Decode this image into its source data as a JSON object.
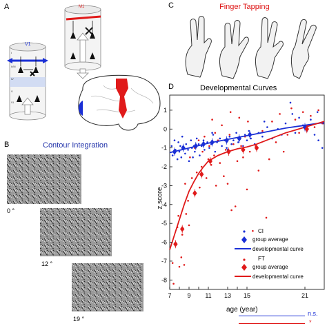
{
  "panels": {
    "A": {
      "letter": "A",
      "cyl_v1_label": "V1",
      "cyl_m1_label": "M1",
      "layers": [
        "I",
        "II/III",
        "IV",
        "V",
        "VI"
      ]
    },
    "B": {
      "letter": "B",
      "title": "Contour Integration",
      "angles": [
        "0 °",
        "12 °",
        "19 °"
      ]
    },
    "C": {
      "letter": "C",
      "title": "Finger Tapping"
    },
    "D": {
      "letter": "D",
      "title": "Developmental Curves"
    }
  },
  "colors": {
    "blue": "#1a2fd6",
    "red": "#e01a1a",
    "title_blue": "#2233aa",
    "title_red": "#dd1111"
  },
  "significance": {
    "blue_label": "n.s.",
    "red_label": "*"
  },
  "chart_data": {
    "type": "scatter",
    "title": "Developmental Curves",
    "xlabel": "age (year)",
    "ylabel": "z score",
    "xlim": [
      7,
      23
    ],
    "ylim": [
      -8.5,
      1.8
    ],
    "xticks": [
      7,
      8,
      9,
      10,
      11,
      13,
      14,
      15,
      21
    ],
    "xtick_labels": [
      "7",
      "9",
      "11",
      "13",
      "15",
      "21"
    ],
    "xtick_label_values": [
      7,
      9,
      11,
      13,
      15,
      21
    ],
    "yticks": [
      1,
      0,
      -1,
      -2,
      -3,
      -4,
      -5,
      -6,
      -7,
      -8
    ],
    "grid": false,
    "legend": {
      "placement": "bottom-right",
      "entries": [
        "CI",
        "group average",
        "developmental curve",
        "FT",
        "group average",
        "developmental curve"
      ]
    },
    "series": [
      {
        "name": "CI",
        "kind": "points",
        "color": "#1a2fd6",
        "points": [
          [
            7.2,
            -0.9
          ],
          [
            7.3,
            -1.4
          ],
          [
            7.5,
            -0.6
          ],
          [
            7.6,
            -1.1
          ],
          [
            7.8,
            -1.6
          ],
          [
            7.9,
            -0.7
          ],
          [
            8.0,
            -1.2
          ],
          [
            8.1,
            -0.9
          ],
          [
            8.2,
            -1.5
          ],
          [
            8.3,
            -0.4
          ],
          [
            8.4,
            -1.0
          ],
          [
            8.6,
            -1.3
          ],
          [
            8.7,
            -0.8
          ],
          [
            8.9,
            -1.1
          ],
          [
            9.0,
            -1.7
          ],
          [
            9.2,
            -0.6
          ],
          [
            9.3,
            -1.0
          ],
          [
            9.5,
            -0.9
          ],
          [
            9.6,
            -1.2
          ],
          [
            9.8,
            -0.5
          ],
          [
            10.0,
            -0.8
          ],
          [
            10.1,
            -1.4
          ],
          [
            10.3,
            -0.9
          ],
          [
            10.5,
            -0.6
          ],
          [
            10.6,
            -1.1
          ],
          [
            10.9,
            -0.7
          ],
          [
            11.1,
            -1.0
          ],
          [
            11.3,
            -0.8
          ],
          [
            11.5,
            -0.3
          ],
          [
            11.7,
            -1.2
          ],
          [
            11.9,
            -0.7
          ],
          [
            12.2,
            -0.5
          ],
          [
            12.4,
            -0.9
          ],
          [
            12.7,
            -0.6
          ],
          [
            12.9,
            -1.0
          ],
          [
            13.2,
            -0.4
          ],
          [
            13.4,
            -0.8
          ],
          [
            13.6,
            -0.6
          ],
          [
            13.9,
            -0.2
          ],
          [
            14.1,
            -0.7
          ],
          [
            14.3,
            -0.5
          ],
          [
            14.6,
            -0.9
          ],
          [
            14.8,
            -0.3
          ],
          [
            15.0,
            -0.6
          ],
          [
            15.2,
            -0.1
          ],
          [
            15.4,
            -0.5
          ],
          [
            15.8,
            -0.8
          ],
          [
            16.2,
            -0.2
          ],
          [
            16.6,
            -0.4
          ],
          [
            17.1,
            0.1
          ],
          [
            17.6,
            -0.5
          ],
          [
            18.2,
            0.0
          ],
          [
            18.6,
            -0.3
          ],
          [
            19.0,
            0.3
          ],
          [
            19.5,
            1.4
          ],
          [
            19.7,
            0.8
          ],
          [
            20.0,
            -0.2
          ],
          [
            20.4,
            0.6
          ],
          [
            20.8,
            0.2
          ],
          [
            21.2,
            -0.1
          ],
          [
            21.6,
            0.5
          ],
          [
            22.0,
            -0.3
          ],
          [
            22.4,
            -0.6
          ],
          [
            22.8,
            -1.0
          ],
          [
            22.9,
            0.3
          ],
          [
            22.3,
            0.9
          ],
          [
            9.4,
            -1.5
          ],
          [
            11.4,
            -0.2
          ],
          [
            13.0,
            -1.1
          ],
          [
            16.8,
            0.4
          ]
        ]
      },
      {
        "name": "group average",
        "kind": "diamonds",
        "color": "#1a2fd6",
        "points": [
          [
            7.5,
            -1.2
          ],
          [
            8.4,
            -1.0
          ],
          [
            9.7,
            -0.9
          ],
          [
            10.5,
            -0.8
          ],
          [
            11.4,
            -0.7
          ],
          [
            12.9,
            -0.6
          ],
          [
            14.2,
            -0.5
          ],
          [
            15.3,
            -0.3
          ],
          [
            21.0,
            0.1
          ]
        ]
      },
      {
        "name": "developmental curve",
        "kind": "line",
        "color": "#1a2fd6",
        "points": [
          [
            7,
            -1.25
          ],
          [
            9,
            -1.0
          ],
          [
            11,
            -0.75
          ],
          [
            13,
            -0.55
          ],
          [
            15,
            -0.35
          ],
          [
            17,
            -0.15
          ],
          [
            19,
            0.05
          ],
          [
            21,
            0.2
          ],
          [
            23,
            0.35
          ]
        ]
      },
      {
        "name": "FT",
        "kind": "points",
        "color": "#e01a1a",
        "points": [
          [
            7.3,
            -7.1
          ],
          [
            7.4,
            -8.2
          ],
          [
            7.6,
            -6.1
          ],
          [
            7.8,
            -5.2
          ],
          [
            7.9,
            -4.6
          ],
          [
            8.0,
            -7.3
          ],
          [
            8.2,
            -6.8
          ],
          [
            8.3,
            -5.6
          ],
          [
            8.5,
            -7.2
          ],
          [
            8.6,
            -2.9
          ],
          [
            8.7,
            -4.5
          ],
          [
            8.9,
            -3.8
          ],
          [
            9.0,
            -5.1
          ],
          [
            9.1,
            -1.5
          ],
          [
            9.3,
            -2.6
          ],
          [
            9.5,
            -3.4
          ],
          [
            9.6,
            -1.0
          ],
          [
            9.8,
            -2.3
          ],
          [
            10.0,
            -0.6
          ],
          [
            10.1,
            -3.1
          ],
          [
            10.3,
            -2.0
          ],
          [
            10.4,
            -1.2
          ],
          [
            10.6,
            -0.4
          ],
          [
            10.8,
            -2.6
          ],
          [
            11.0,
            -1.6
          ],
          [
            11.1,
            -0.9
          ],
          [
            11.3,
            -1.9
          ],
          [
            11.4,
            0.5
          ],
          [
            11.6,
            -1.4
          ],
          [
            11.8,
            -3.0
          ],
          [
            12.0,
            -0.6
          ],
          [
            12.2,
            -1.8
          ],
          [
            12.4,
            0.2
          ],
          [
            12.6,
            -2.5
          ],
          [
            12.8,
            -1.1
          ],
          [
            13.0,
            -2.9
          ],
          [
            13.2,
            -0.3
          ],
          [
            13.4,
            -4.3
          ],
          [
            13.6,
            -0.8
          ],
          [
            13.8,
            -4.1
          ],
          [
            14.0,
            -1.7
          ],
          [
            14.2,
            0.6
          ],
          [
            14.4,
            -0.9
          ],
          [
            14.6,
            -1.5
          ],
          [
            14.8,
            -0.4
          ],
          [
            15.0,
            -3.2
          ],
          [
            15.3,
            -1.2
          ],
          [
            15.6,
            -5.4
          ],
          [
            15.9,
            -0.9
          ],
          [
            16.2,
            -2.2
          ],
          [
            16.6,
            -0.1
          ],
          [
            17.0,
            -4.7
          ],
          [
            17.3,
            -1.6
          ],
          [
            17.6,
            0.4
          ],
          [
            18.0,
            -0.7
          ],
          [
            18.4,
            0.8
          ],
          [
            18.8,
            -1.2
          ],
          [
            19.2,
            -0.3
          ],
          [
            19.6,
            1.1
          ],
          [
            20.0,
            0.5
          ],
          [
            20.4,
            -0.2
          ],
          [
            20.8,
            0.9
          ],
          [
            21.2,
            0.2
          ],
          [
            21.6,
            0.7
          ],
          [
            22.0,
            0.1
          ],
          [
            22.4,
            1.0
          ],
          [
            22.8,
            0.3
          ],
          [
            11.7,
            -0.2
          ],
          [
            13.3,
            0.9
          ],
          [
            15.1,
            0.4
          ]
        ]
      },
      {
        "name": "group average",
        "kind": "diamonds",
        "color": "#e01a1a",
        "points": [
          [
            7.6,
            -6.1
          ],
          [
            8.3,
            -5.3
          ],
          [
            9.6,
            -3.4
          ],
          [
            10.3,
            -2.4
          ],
          [
            11.2,
            -1.7
          ],
          [
            13.1,
            -1.2
          ],
          [
            14.6,
            -1.1
          ],
          [
            16.0,
            -1.0
          ],
          [
            21.2,
            0.0
          ]
        ]
      },
      {
        "name": "developmental curve",
        "kind": "line",
        "color": "#e01a1a",
        "points": [
          [
            7,
            -6.4
          ],
          [
            7.5,
            -5.6
          ],
          [
            8,
            -4.8
          ],
          [
            8.5,
            -4.0
          ],
          [
            9,
            -3.3
          ],
          [
            9.5,
            -2.8
          ],
          [
            10,
            -2.35
          ],
          [
            10.5,
            -2.0
          ],
          [
            11,
            -1.7
          ],
          [
            12,
            -1.4
          ],
          [
            13,
            -1.2
          ],
          [
            14,
            -1.05
          ],
          [
            15,
            -0.95
          ],
          [
            16,
            -0.8
          ],
          [
            17,
            -0.6
          ],
          [
            18,
            -0.4
          ],
          [
            19,
            -0.2
          ],
          [
            20,
            -0.05
          ],
          [
            21,
            0.1
          ],
          [
            22,
            0.25
          ],
          [
            23,
            0.4
          ]
        ]
      }
    ]
  }
}
